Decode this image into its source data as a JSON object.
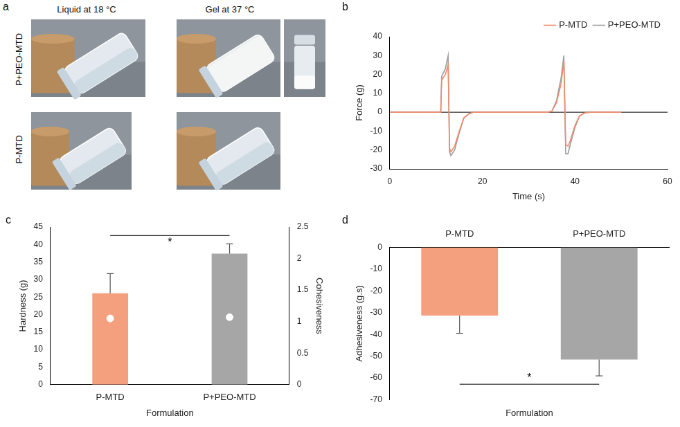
{
  "photo_panel": {
    "panel": "a",
    "column_titles": [
      "Liquid at 18 °C",
      "Gel at 37 °C"
    ],
    "row_labels": [
      "P+PEO-MTD",
      "P-MTD"
    ]
  },
  "chart_data": [
    {
      "panel": "b",
      "type": "line",
      "x_label": "Time (s)",
      "y_label": "Force (g)",
      "xlim": [
        0,
        60
      ],
      "xticks": [
        0,
        20,
        40,
        60
      ],
      "ylim": [
        -30,
        40
      ],
      "yticks": [
        -30,
        -20,
        -10,
        0,
        10,
        20,
        30,
        40
      ],
      "grid": false,
      "legend": "top-right",
      "x": [
        0,
        5,
        10,
        11,
        11.2,
        12,
        12.6,
        12.9,
        13.2,
        14,
        15,
        16,
        17,
        18,
        25,
        34,
        35,
        36,
        37,
        37.6,
        38,
        38.5,
        39,
        40,
        41,
        42,
        43,
        50
      ],
      "series": [
        {
          "name": "P-MTD",
          "color": "#f08a6c",
          "values": [
            0,
            0,
            0,
            0,
            17,
            20,
            25,
            -19,
            -21,
            -18,
            -10,
            -3,
            -1,
            0,
            0,
            0,
            0.5,
            5,
            15,
            27,
            -17,
            -18,
            -15,
            -7,
            -2,
            -0.5,
            0,
            0
          ]
        },
        {
          "name": "P+PEO-MTD",
          "color": "#9e9e9e",
          "values": [
            0,
            0,
            0,
            0,
            19,
            23,
            30,
            -21,
            -23,
            -20,
            -11,
            -3,
            -1,
            0,
            0,
            0,
            0.5,
            6,
            18,
            30,
            -22,
            -22,
            -17,
            -8,
            -2,
            -0.5,
            0,
            0
          ]
        }
      ]
    },
    {
      "panel": "c",
      "type": "bar",
      "x_label": "Formulation",
      "y_label": "Hardness (g)",
      "y2_label": "Cohesiveness",
      "categories": [
        "P-MTD",
        "P+PEO-MTD"
      ],
      "ylim": [
        0,
        45
      ],
      "yticks": [
        0,
        5,
        10,
        15,
        20,
        25,
        30,
        35,
        40,
        45
      ],
      "y2lim": [
        0,
        2.5
      ],
      "y2ticks": [
        0,
        0.5,
        1,
        1.5,
        2,
        2.5
      ],
      "grid": false,
      "series": [
        {
          "values": [
            26.1,
            37.4
          ],
          "errors": [
            5.6,
            2.8
          ],
          "colors": [
            "#f4a07f",
            "#a6a6a6"
          ]
        },
        {
          "type": "scatter",
          "axis": "y2",
          "values": [
            1.05,
            1.07
          ],
          "color": "#ffffff",
          "marker": "circle"
        }
      ],
      "significance": {
        "label": "*",
        "between": [
          "P-MTD",
          "P+PEO-MTD"
        ]
      }
    },
    {
      "panel": "d",
      "type": "bar",
      "x_label": "Formulation",
      "y_label": "Adhesiveness (g.s)",
      "categories": [
        "P-MTD",
        "P+PEO-MTD"
      ],
      "ylim": [
        -70,
        0
      ],
      "yticks": [
        -70,
        -60,
        -50,
        -40,
        -30,
        -20,
        -10,
        0
      ],
      "grid": false,
      "series": [
        {
          "values": [
            -31.3,
            -51.6
          ],
          "errors": [
            8.2,
            7.5
          ],
          "colors": [
            "#f4a07f",
            "#a6a6a6"
          ]
        }
      ],
      "significance": {
        "label": "*",
        "between": [
          "P-MTD",
          "P+PEO-MTD"
        ]
      }
    }
  ]
}
